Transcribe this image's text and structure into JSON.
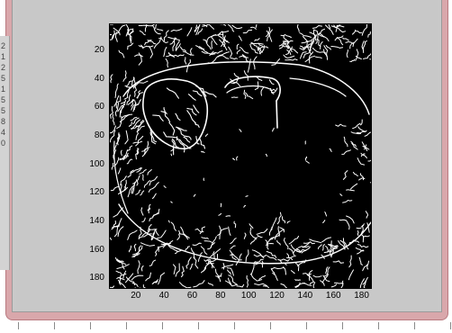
{
  "chart_data": {
    "type": "image",
    "description": "",
    "x_ticks": [
      "20",
      "40",
      "60",
      "80",
      "100",
      "120",
      "140",
      "160",
      "180"
    ],
    "y_ticks": [
      "20",
      "40",
      "60",
      "80",
      "100",
      "120",
      "140",
      "160",
      "180"
    ],
    "xlim": [
      1,
      186
    ],
    "ylim": [
      1,
      186
    ]
  },
  "left_strip_chars": [
    "2",
    "1",
    "2",
    "5",
    "1",
    "5",
    "5",
    "8",
    "4",
    "0"
  ]
}
